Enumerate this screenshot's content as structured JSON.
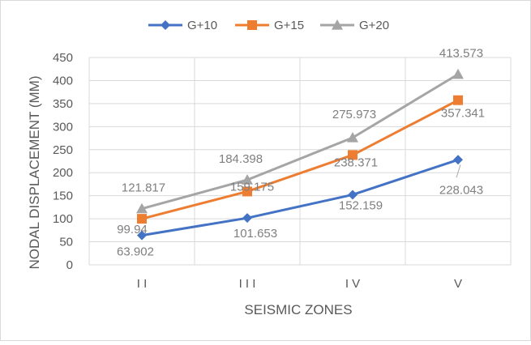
{
  "chart_data": {
    "type": "line",
    "categories": [
      "I I",
      "I I I",
      "I V",
      "V"
    ],
    "series": [
      {
        "name": "G+10",
        "values": [
          63.902,
          101.653,
          152.159,
          228.043
        ],
        "labels": [
          "63.902",
          "101.653",
          "152.159",
          "228.043"
        ],
        "color": "#4472c4",
        "marker": "diamond"
      },
      {
        "name": "G+15",
        "values": [
          99.94,
          159.175,
          238.371,
          357.341
        ],
        "labels": [
          "99.94",
          "159.175",
          "238.371",
          "357.341"
        ],
        "color": "#ed7d31",
        "marker": "square"
      },
      {
        "name": "G+20",
        "values": [
          121.817,
          184.398,
          275.973,
          413.573
        ],
        "labels": [
          "121.817",
          "184.398",
          "275.973",
          "413.573"
        ],
        "color": "#a5a5a5",
        "marker": "triangle"
      }
    ],
    "xlabel": "SEISMIC ZONES",
    "ylabel": "NODAL DISPLACEMENT (MM)",
    "ylim": [
      0,
      450
    ],
    "yticks": [
      0,
      50,
      100,
      150,
      200,
      250,
      300,
      350,
      400,
      450
    ],
    "grid": "both",
    "legend": "top-center",
    "label_color": "#7f7f7f"
  }
}
